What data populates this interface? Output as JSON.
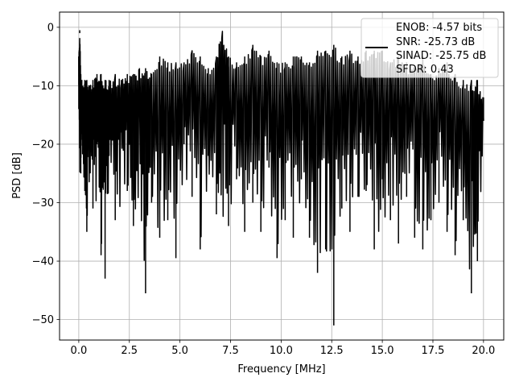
{
  "chart_data": {
    "type": "line",
    "title": "",
    "xlabel": "Frequency [MHz]",
    "ylabel": "PSD [dB]",
    "xlim": [
      -0.95,
      21.0
    ],
    "ylim": [
      -53.5,
      2.6
    ],
    "xticks": [
      0.0,
      2.5,
      5.0,
      7.5,
      10.0,
      12.5,
      15.0,
      17.5,
      20.0
    ],
    "xtick_labels": [
      "0.0",
      "2.5",
      "5.0",
      "7.5",
      "10.0",
      "12.5",
      "15.0",
      "17.5",
      "20.0"
    ],
    "yticks": [
      0,
      -10,
      -20,
      -30,
      -40,
      -50
    ],
    "ytick_labels": [
      "0",
      "−10",
      "−20",
      "−30",
      "−40",
      "−50"
    ],
    "grid": true,
    "line_color": "#000000",
    "series": [
      {
        "name": "",
        "x": [
          0.0,
          0.05,
          0.1,
          0.15,
          0.2,
          0.3,
          0.4,
          0.55,
          0.7,
          0.9,
          1.1,
          1.3,
          1.5,
          1.8,
          2.1,
          2.4,
          2.7,
          3.0,
          3.3,
          3.6,
          4.0,
          4.4,
          4.8,
          5.2,
          5.6,
          6.0,
          6.4,
          6.8,
          7.1,
          7.4,
          7.8,
          8.2,
          8.6,
          9.0,
          9.4,
          9.8,
          10.2,
          10.6,
          11.0,
          11.4,
          11.8,
          12.2,
          12.6,
          13.0,
          13.4,
          13.8,
          14.2,
          14.6,
          15.0,
          15.4,
          15.8,
          16.2,
          16.6,
          17.0,
          17.4,
          17.8,
          18.2,
          18.6,
          19.0,
          19.4,
          19.7,
          20.0
        ],
        "y": [
          -14,
          -0.5,
          -25,
          -18,
          -12,
          -28,
          -35,
          -15,
          -31,
          -20,
          -39,
          -43,
          -22,
          -33,
          -18,
          -28,
          -34,
          -15,
          -45.5,
          -30,
          -36,
          -33,
          -39.5,
          -20,
          -29,
          -38,
          -22,
          -32,
          0,
          -34,
          -26,
          -35,
          -30,
          -35,
          -24,
          -39.5,
          -33,
          -36,
          -26,
          -36,
          -42,
          -38,
          -51,
          -31,
          -35,
          -29,
          -28,
          -38,
          -26,
          -33,
          -37,
          -29,
          -36,
          -38,
          -33,
          -30,
          -35,
          -39,
          -33,
          -45.5,
          -40,
          -16
        ]
      }
    ],
    "envelope": {
      "upper": [
        -5,
        -1,
        -8,
        -9,
        -10,
        -9,
        -9,
        -10,
        -9,
        -8,
        -8,
        -9,
        -9,
        -8,
        -9,
        -8,
        -8,
        -7,
        -7,
        -8,
        -5,
        -6,
        -6,
        -6,
        -4,
        -5,
        -7,
        -5,
        0,
        -5,
        -6,
        -5,
        -3,
        -5,
        -4,
        -6,
        -6,
        -5,
        -5,
        -6,
        -4,
        -4,
        -3,
        -5,
        -4,
        -5,
        -4,
        -4,
        -4,
        -6,
        -5,
        -6,
        -7,
        -5,
        -8,
        -7,
        -6,
        -8,
        -9,
        -9,
        -9,
        -12
      ],
      "lower": [
        -14,
        -25,
        -26,
        -20,
        -24,
        -28,
        -35,
        -25,
        -31,
        -30,
        -39,
        -43,
        -30,
        -33,
        -30,
        -28,
        -34,
        -28,
        -45.5,
        -30,
        -36,
        -33,
        -39.5,
        -30,
        -29,
        -38,
        -30,
        -32,
        -33,
        -34,
        -26,
        -35,
        -30,
        -35,
        -30,
        -39.5,
        -33,
        -36,
        -31,
        -36,
        -42,
        -38,
        -51,
        -31,
        -35,
        -29,
        -32,
        -38,
        -33,
        -33,
        -37,
        -29,
        -36,
        -38,
        -33,
        -30,
        -35,
        -39,
        -33,
        -45.5,
        -40,
        -24
      ]
    },
    "legend": {
      "placement": "top-right",
      "entries": [
        {
          "label": "ENOB: -4.57 bits"
        },
        {
          "label": "SNR: -25.73 dB"
        },
        {
          "label": "SINAD: -25.75 dB"
        },
        {
          "label": "SFDR: 0.43"
        }
      ]
    }
  }
}
